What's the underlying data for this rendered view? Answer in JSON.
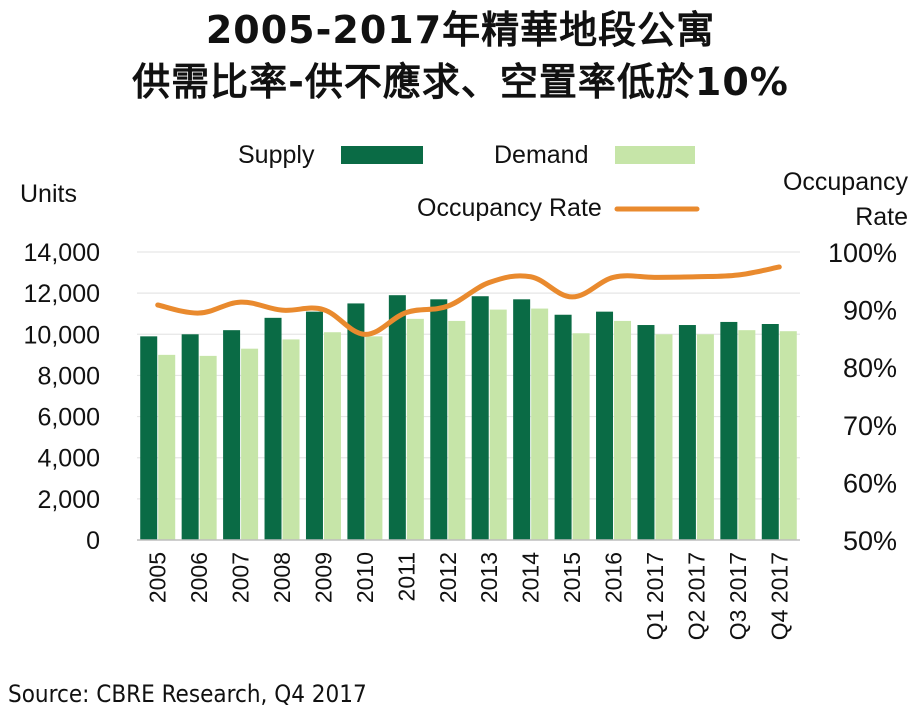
{
  "title_line1": "2005-2017年精華地段公寓",
  "title_line2": "供需比率-供不應求、空置率低於10%",
  "source": "Source: CBRE Research, Q4 2017",
  "colors": {
    "supply": "#0a6b45",
    "demand": "#c6e5a8",
    "occupancy": "#e98a2e",
    "grid": "#e6e6e6"
  },
  "chart_data": {
    "type": "bar",
    "categories": [
      "2005",
      "2006",
      "2007",
      "2008",
      "2009",
      "2010",
      "2011",
      "2012",
      "2013",
      "2014",
      "2015",
      "2016",
      "Q1 2017",
      "Q2 2017",
      "Q3 2017",
      "Q4 2017"
    ],
    "series": [
      {
        "name": "Supply",
        "type": "bar",
        "axis": "left",
        "values": [
          9900,
          10000,
          10200,
          10800,
          11100,
          11500,
          11900,
          11700,
          11850,
          11700,
          10950,
          11100,
          10450,
          10450,
          10600,
          10500
        ]
      },
      {
        "name": "Demand",
        "type": "bar",
        "axis": "left",
        "values": [
          9000,
          8950,
          9300,
          9750,
          10100,
          9900,
          10750,
          10650,
          11200,
          11250,
          10050,
          10650,
          10000,
          10000,
          10200,
          10150
        ]
      },
      {
        "name": "Occupancy Rate",
        "type": "line",
        "axis": "right",
        "unit": "%",
        "values": [
          90.8,
          89.4,
          91.3,
          89.9,
          90.0,
          85.7,
          89.5,
          90.6,
          94.7,
          95.7,
          92.2,
          95.6,
          95.6,
          95.7,
          96.0,
          97.4
        ]
      }
    ],
    "ylabel_left": "Units",
    "ylabel_right": "Occupancy Rate",
    "ylim_left": [
      0,
      14000
    ],
    "ylim_right": [
      50,
      100
    ],
    "yticks_left": [
      "0",
      "2,000",
      "4,000",
      "6,000",
      "8,000",
      "10,000",
      "12,000",
      "14,000"
    ],
    "yticks_right": [
      "50%",
      "60%",
      "70%",
      "80%",
      "90%",
      "100%"
    ],
    "grid": true,
    "legend_position": "top"
  }
}
